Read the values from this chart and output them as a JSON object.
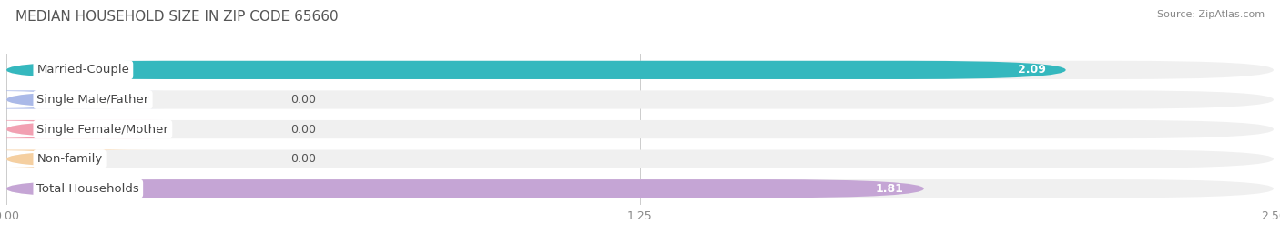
{
  "title": "MEDIAN HOUSEHOLD SIZE IN ZIP CODE 65660",
  "source": "Source: ZipAtlas.com",
  "categories": [
    "Married-Couple",
    "Single Male/Father",
    "Single Female/Mother",
    "Non-family",
    "Total Households"
  ],
  "values": [
    2.09,
    0.0,
    0.0,
    0.0,
    1.81
  ],
  "bar_colors": [
    "#35b8be",
    "#aab9e8",
    "#f2a0b2",
    "#f5cfa0",
    "#c5a5d5"
  ],
  "xlim_max": 2.5,
  "xticks": [
    0.0,
    1.25,
    2.5
  ],
  "xtick_labels": [
    "0.00",
    "1.25",
    "2.50"
  ],
  "background_color": "#ffffff",
  "row_bg_color": "#f0f0f0",
  "title_fontsize": 11,
  "label_fontsize": 9.5,
  "value_fontsize": 9,
  "source_fontsize": 8
}
